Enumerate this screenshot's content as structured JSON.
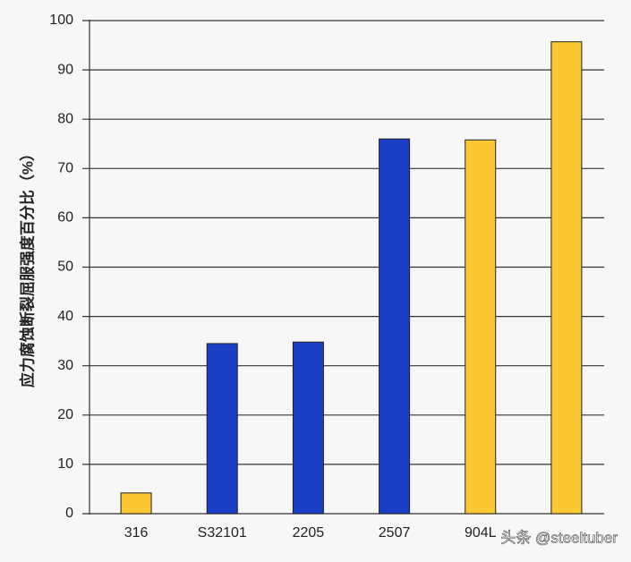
{
  "chart_data": {
    "type": "bar",
    "y_label": "应力腐蚀断裂屈服强度百分比（%）",
    "categories": [
      "316",
      "S32101",
      "2205",
      "2507",
      "904L",
      null
    ],
    "values": [
      4.2,
      34.5,
      34.8,
      76,
      75.8,
      95.7
    ],
    "colors": [
      "#fac832",
      "#1a3fc4",
      "#1a3fc4",
      "#1a3fc4",
      "#fac832",
      "#fac832"
    ],
    "ylim": [
      0,
      100
    ],
    "yticks": [
      0,
      10,
      20,
      30,
      40,
      50,
      60,
      70,
      80,
      90,
      100
    ],
    "grid": true,
    "watermark": "头条 @steeltuber"
  }
}
